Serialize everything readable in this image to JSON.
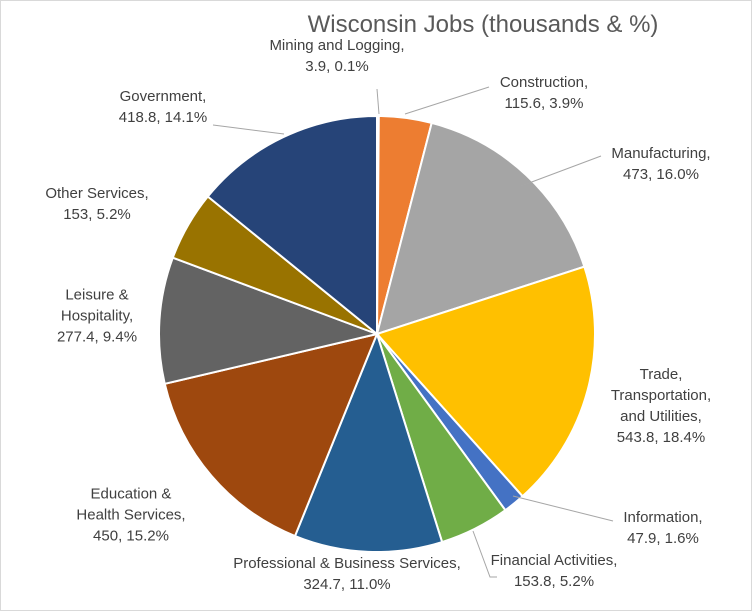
{
  "chart_data": {
    "type": "pie",
    "title": "Wisconsin Jobs (thousands & %)",
    "categories": [
      "Mining and Logging,",
      "Construction,",
      "Manufacturing,",
      "Trade, Transportation, and Utilities,",
      "Information,",
      "Financial Activities,",
      "Professional & Business Services,",
      "Education & Health Services,",
      "Leisure & Hospitality,",
      "Other Services,",
      "Government,"
    ],
    "values": [
      3.9,
      115.6,
      473,
      543.8,
      47.9,
      153.8,
      324.7,
      450,
      277.4,
      153,
      418.8
    ],
    "value_labels": [
      "3.9, 0.1%",
      "115.6, 3.9%",
      "473, 16.0%",
      "543.8, 18.4%",
      "47.9, 1.6%",
      "153.8, 5.2%",
      "324.7, 11.0%",
      "450, 15.2%",
      "277.4, 9.4%",
      "153, 5.2%",
      "418.8, 14.1%"
    ],
    "colors": [
      "#4472c4",
      "#ed7d31",
      "#a5a5a5",
      "#ffc000",
      "#4472c4",
      "#70ad47",
      "#255e91",
      "#9e480e",
      "#636363",
      "#997300",
      "#264478"
    ]
  }
}
